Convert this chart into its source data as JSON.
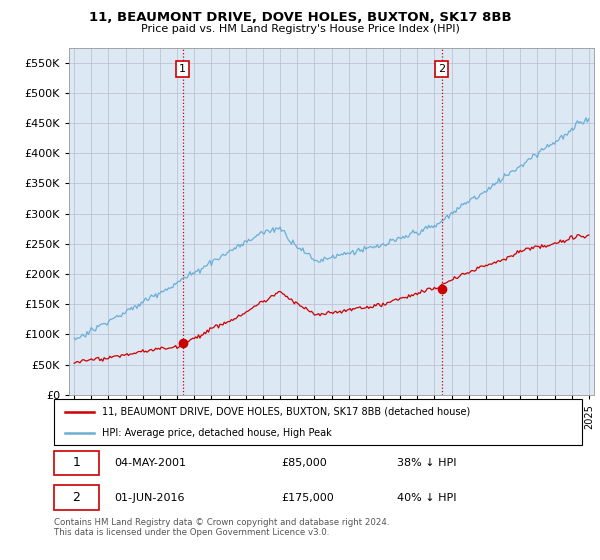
{
  "title": "11, BEAUMONT DRIVE, DOVE HOLES, BUXTON, SK17 8BB",
  "subtitle": "Price paid vs. HM Land Registry's House Price Index (HPI)",
  "legend_entry1": "11, BEAUMONT DRIVE, DOVE HOLES, BUXTON, SK17 8BB (detached house)",
  "legend_entry2": "HPI: Average price, detached house, High Peak",
  "annotation1_date": "04-MAY-2001",
  "annotation1_price": "£85,000",
  "annotation1_hpi": "38% ↓ HPI",
  "annotation2_date": "01-JUN-2016",
  "annotation2_price": "£175,000",
  "annotation2_hpi": "40% ↓ HPI",
  "footer": "Contains HM Land Registry data © Crown copyright and database right 2024.\nThis data is licensed under the Open Government Licence v3.0.",
  "hpi_color": "#6baed6",
  "price_color": "#cc0000",
  "chart_bg_color": "#dce9f5",
  "background_color": "#ffffff",
  "grid_color": "#aaaacc",
  "t1_year": 2001.33,
  "t1_price": 85000,
  "t2_year": 2016.42,
  "t2_price": 175000
}
